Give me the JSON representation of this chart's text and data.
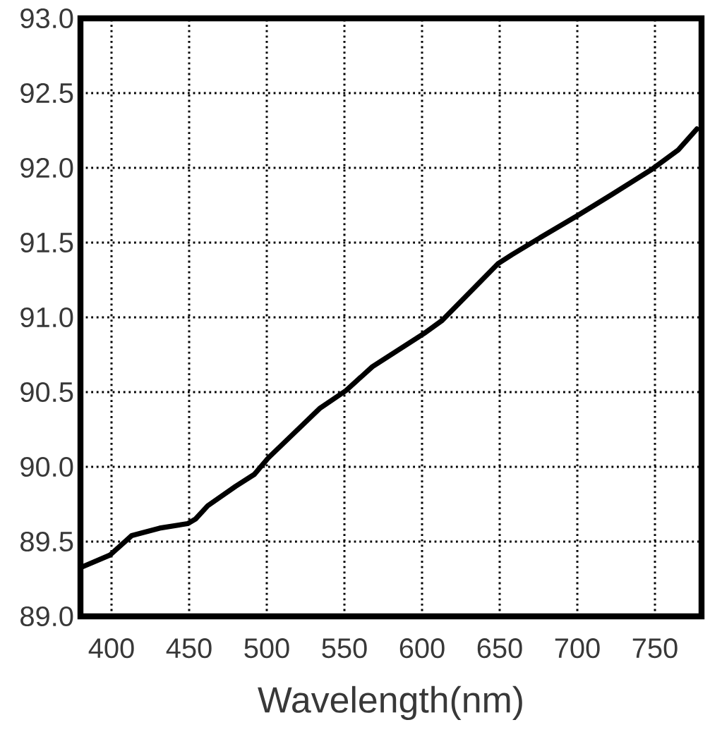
{
  "chart_data": {
    "type": "line",
    "xlabel": "Wavelength(nm)",
    "x": [
      381,
      399,
      413,
      431,
      449,
      454,
      462,
      480,
      492,
      501,
      516,
      534,
      551,
      568,
      601,
      613,
      631,
      649,
      658,
      674,
      700,
      722,
      748,
      765,
      777
    ],
    "values": [
      89.33,
      89.41,
      89.54,
      89.59,
      89.62,
      89.65,
      89.74,
      89.87,
      89.95,
      90.06,
      90.21,
      90.39,
      90.51,
      90.67,
      90.89,
      90.98,
      91.17,
      91.36,
      91.42,
      91.52,
      91.68,
      91.82,
      91.99,
      92.12,
      92.26
    ],
    "color": "#000000",
    "xlim": [
      380,
      780
    ],
    "ylim": [
      89,
      93
    ],
    "xticks": [
      400,
      450,
      500,
      550,
      600,
      650,
      700,
      750
    ],
    "yticks": [
      {
        "value": 89,
        "label": "89.0"
      },
      89.5,
      {
        "value": 90,
        "label": "90.0"
      },
      90.5,
      {
        "value": 91,
        "label": "91.0"
      },
      91.5,
      {
        "value": 92,
        "label": "92.0"
      },
      92.5,
      {
        "value": 93,
        "label": "93.0"
      }
    ],
    "grid": true
  }
}
